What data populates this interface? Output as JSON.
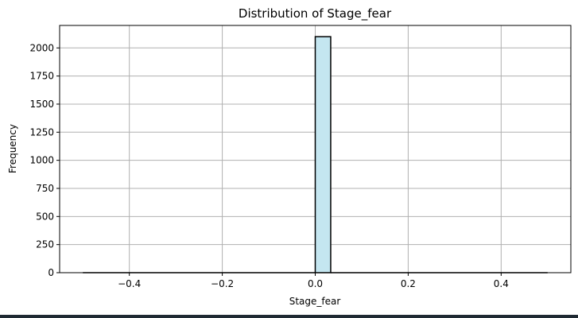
{
  "chart_data": {
    "type": "bar",
    "title": "Distribution of Stage_fear",
    "xlabel": "Stage_fear",
    "ylabel": "Frequency",
    "xlim": [
      -0.55,
      0.55
    ],
    "ylim": [
      0,
      2200
    ],
    "x_ticks": [
      -0.4,
      -0.2,
      0.0,
      0.2,
      0.4
    ],
    "x_tick_labels": [
      "−0.4",
      "−0.2",
      "0.0",
      "0.2",
      "0.4"
    ],
    "y_ticks": [
      0,
      250,
      500,
      750,
      1000,
      1250,
      1500,
      1750,
      2000
    ],
    "y_tick_labels": [
      "0",
      "250",
      "500",
      "750",
      "1000",
      "1250",
      "1500",
      "1750",
      "2000"
    ],
    "grid": true,
    "bar_color": "#c4e6f0",
    "edge_color": "#000000",
    "bins": [
      {
        "x_start": -0.5,
        "x_end": 0.0,
        "value": 0
      },
      {
        "x_start": 0.0,
        "x_end": 0.0333,
        "value": 2100
      },
      {
        "x_start": 0.0333,
        "x_end": 0.5,
        "value": 0
      }
    ]
  }
}
